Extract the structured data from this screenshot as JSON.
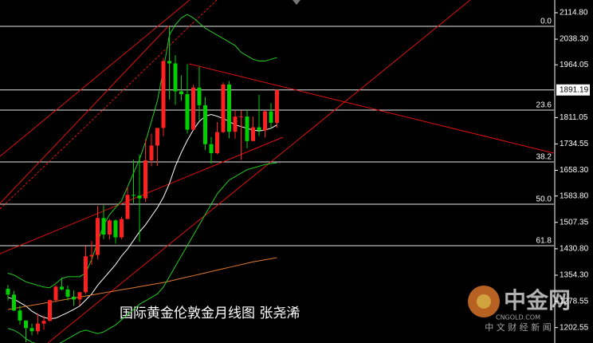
{
  "chart_data": {
    "type": "candlestick",
    "title": "国际黄金伦敦金月线图  张尧浠",
    "watermark": {
      "brand": "中金网",
      "site": "CNGOLD.COM",
      "slogan": "中 文 财 经 新 闻"
    },
    "ylim": [
      1157.8,
      2151.8
    ],
    "yticks": [
      {
        "value": 2114.8,
        "label": "2114.80"
      },
      {
        "value": 2038.3,
        "label": "2038.30"
      },
      1964.05,
      1811.05,
      1734.55,
      {
        "value": 1658.3,
        "label": "1658.30"
      },
      {
        "value": 1583.8,
        "label": "1583.80"
      },
      1507.35,
      {
        "value": 1430.8,
        "label": "1430.80"
      },
      {
        "value": 1354.3,
        "label": "1354.30"
      },
      1278.55,
      1202.55
    ],
    "last_price": 1891.19,
    "up_color": "#ff2020",
    "down_color": "#00d000",
    "fib_levels": [
      {
        "label": "0.0",
        "price": 2075.5
      },
      {
        "label": "23.6",
        "price": 1832.8
      },
      {
        "label": "38.2",
        "price": 1682.5
      },
      {
        "label": "50.0",
        "price": 1560
      },
      {
        "label": "61.8",
        "price": 1439.8
      }
    ],
    "open": [
      1315,
      1298,
      1252,
      1223,
      1201,
      1192,
      1214,
      1222,
      1282,
      1321,
      1313,
      1292,
      1284,
      1305,
      1409,
      1413,
      1520,
      1472,
      1513,
      1464,
      1517,
      1587,
      1585,
      1577,
      1687,
      1730,
      1781,
      1975,
      1968,
      1887,
      1879,
      1776,
      1898,
      1847,
      1734,
      1708,
      1769,
      1907,
      1770,
      1814,
      1814,
      1743,
      1783,
      1774,
      1829,
      1796
    ],
    "high": [
      1326,
      1309,
      1266,
      1223,
      1214,
      1243,
      1237,
      1284,
      1326,
      1347,
      1324,
      1310,
      1306,
      1439,
      1453,
      1555,
      1557,
      1517,
      1516,
      1524,
      1611,
      1689,
      1704,
      1748,
      1765,
      1779,
      1984,
      2075,
      1992,
      1933,
      1966,
      1906,
      1959,
      1871,
      1755,
      1798,
      1913,
      1917,
      1832,
      1832,
      1835,
      1814,
      1877,
      1831,
      1853,
      1891
    ],
    "low": [
      1281,
      1250,
      1211,
      1160,
      1180,
      1183,
      1196,
      1221,
      1276,
      1311,
      1281,
      1266,
      1267,
      1300,
      1384,
      1400,
      1459,
      1458,
      1446,
      1459,
      1517,
      1563,
      1451,
      1567,
      1670,
      1671,
      1757,
      1863,
      1848,
      1860,
      1765,
      1775,
      1802,
      1717,
      1677,
      1705,
      1766,
      1751,
      1750,
      1688,
      1722,
      1746,
      1758,
      1753,
      1780,
      1781
    ],
    "close": [
      1298,
      1252,
      1223,
      1201,
      1192,
      1214,
      1222,
      1282,
      1321,
      1313,
      1292,
      1284,
      1305,
      1409,
      1413,
      1520,
      1472,
      1513,
      1464,
      1517,
      1587,
      1585,
      1577,
      1687,
      1730,
      1781,
      1975,
      1968,
      1887,
      1879,
      1776,
      1898,
      1847,
      1734,
      1708,
      1769,
      1907,
      1770,
      1814,
      1814,
      1743,
      1783,
      1774,
      1829,
      1796,
      1891.19
    ],
    "overlays": [
      {
        "color": "#ffffff",
        "values": [
          1290,
          1285,
          1275,
          1265,
          1250,
          1240,
          1232,
          1228,
          1230,
          1238,
          1246,
          1255,
          1265,
          1282,
          1300,
          1325,
          1345,
          1365,
          1385,
          1410,
          1430,
          1455,
          1480,
          1500,
          1525,
          1550,
          1580,
          1620,
          1670,
          1710,
          1745,
          1775,
          1800,
          1815,
          1820,
          1815,
          1808,
          1800,
          1790,
          1785,
          1780,
          1775,
          1772,
          1775,
          1780,
          1790
        ]
      },
      {
        "color": "#e07a30",
        "values": [
          1255,
          1258,
          1261,
          1264,
          1267,
          1270,
          1273,
          1276,
          1279,
          1282,
          1285,
          1288,
          1291,
          1294,
          1297,
          1300,
          1303,
          1306,
          1309,
          1312,
          1315,
          1318,
          1321,
          1324,
          1327,
          1330,
          1333,
          1337,
          1341,
          1345,
          1349,
          1353,
          1357,
          1361,
          1365,
          1369,
          1373,
          1377,
          1381,
          1385,
          1389,
          1393,
          1396,
          1399,
          1402,
          1405
        ]
      },
      {
        "color": "#22cc22",
        "values": [
          1360,
          1355,
          1345,
          1335,
          1330,
          1325,
          1320,
          1318,
          1330,
          1345,
          1350,
          1350,
          1350,
          1360,
          1400,
          1450,
          1500,
          1530,
          1550,
          1570,
          1610,
          1650,
          1690,
          1740,
          1800,
          1860,
          1950,
          2050,
          2080,
          2100,
          2110,
          2100,
          2085,
          2070,
          2060,
          2050,
          2040,
          2030,
          2020,
          2000,
          1990,
          1980,
          1975,
          1975,
          1980,
          1985
        ]
      },
      {
        "color": "#22cc22",
        "values": [
          1200,
          1195,
          1185,
          1170,
          1160,
          1155,
          1150,
          1150,
          1152,
          1160,
          1170,
          1180,
          1190,
          1195,
          1190,
          1185,
          1190,
          1200,
          1210,
          1225,
          1240,
          1255,
          1270,
          1280,
          1290,
          1300,
          1320,
          1350,
          1380,
          1410,
          1440,
          1470,
          1500,
          1530,
          1560,
          1590,
          1610,
          1630,
          1640,
          1650,
          1660,
          1665,
          1670,
          1675,
          1678,
          1680
        ]
      }
    ]
  }
}
